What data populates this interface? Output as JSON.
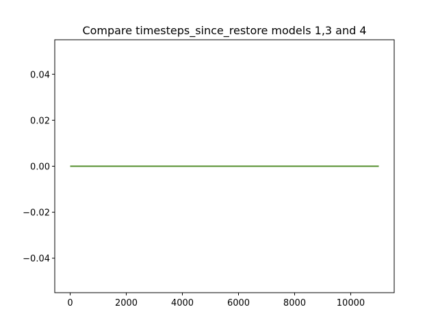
{
  "chart_data": {
    "type": "line",
    "title": "Compare timesteps_since_restore models 1,3 and 4",
    "xlabel": "",
    "ylabel": "",
    "xlim": [
      -550,
      11550
    ],
    "ylim": [
      -0.055,
      0.055
    ],
    "x_ticks": [
      0,
      2000,
      4000,
      6000,
      8000,
      10000
    ],
    "x_tick_labels": [
      "0",
      "2000",
      "4000",
      "6000",
      "8000",
      "10000"
    ],
    "y_ticks": [
      -0.04,
      -0.02,
      0.0,
      0.02,
      0.04
    ],
    "y_tick_labels": [
      "−0.04",
      "−0.02",
      "0.00",
      "0.02",
      "0.04"
    ],
    "grid": false,
    "legend": "none",
    "series": [
      {
        "color": "#1f77b4",
        "x": [
          0,
          11000
        ],
        "y": [
          0,
          0
        ]
      },
      {
        "color": "#ff7f0e",
        "x": [
          0,
          11000
        ],
        "y": [
          0,
          0
        ]
      },
      {
        "color": "#2ca02c",
        "x": [
          0,
          11000
        ],
        "y": [
          0,
          0
        ]
      },
      {
        "color": "#548f2e",
        "x": [
          0,
          11000
        ],
        "y": [
          0,
          0
        ]
      }
    ]
  }
}
